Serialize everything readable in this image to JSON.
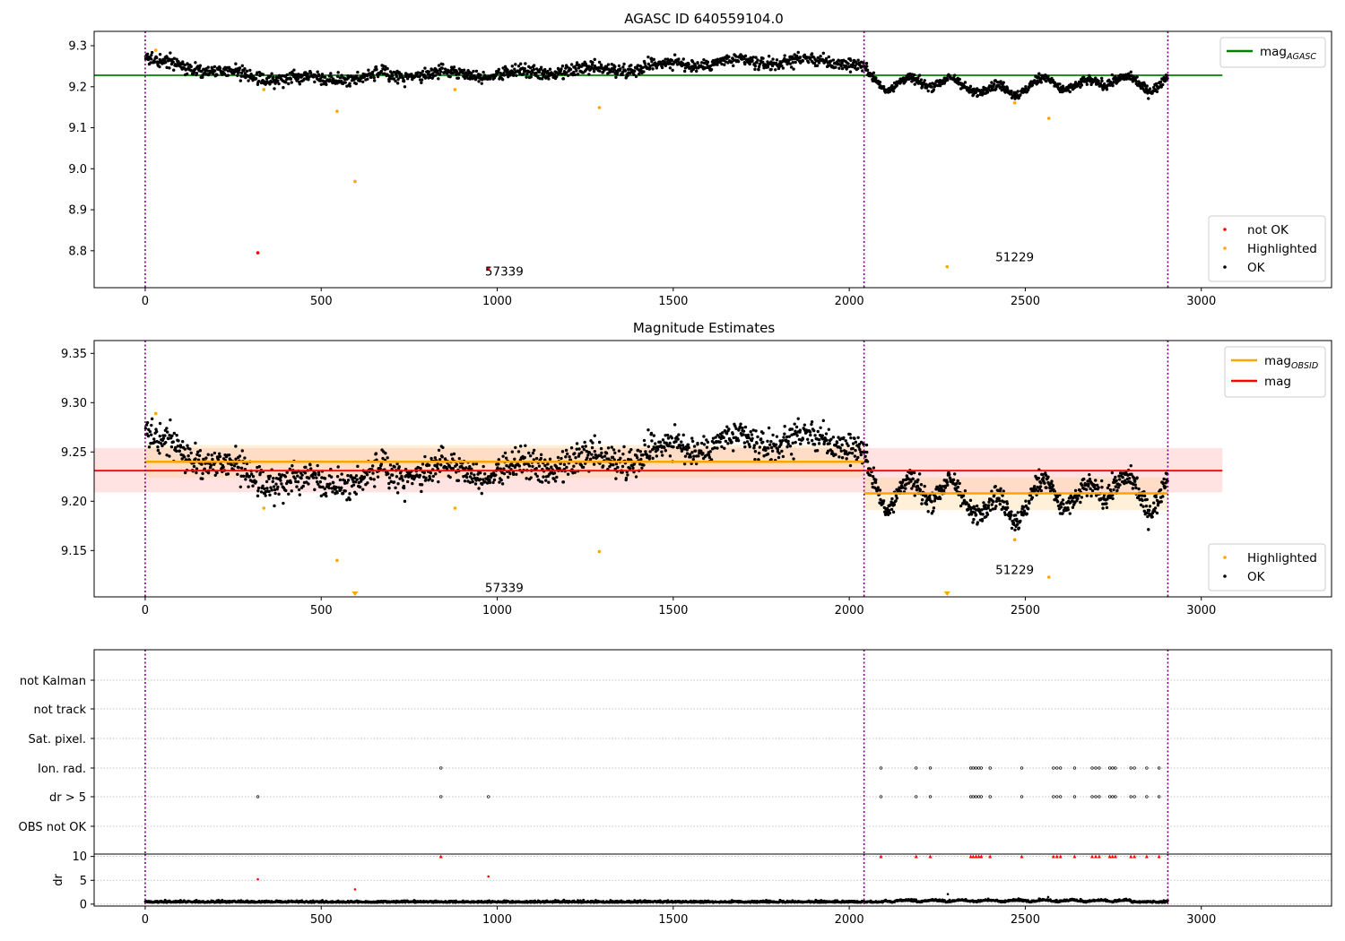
{
  "chart_data": [
    {
      "type": "scatter",
      "title": "AGASC ID 640559104.0",
      "xlim": [
        -145,
        3370
      ],
      "ylim": [
        8.71,
        9.335
      ],
      "x_ticks": [
        0,
        500,
        1000,
        1500,
        2000,
        2500,
        3000
      ],
      "y_ticks": [
        8.8,
        8.9,
        9.0,
        9.1,
        9.2,
        9.3
      ],
      "y_tick_labels": [
        "8.8",
        "8.9",
        "9.0",
        "9.1",
        "9.2",
        "9.3"
      ],
      "vlines": [
        0,
        2042,
        2905
      ],
      "hlines": [
        {
          "y": 9.228,
          "x_end": 3060,
          "color": "#008000"
        }
      ],
      "legend_lines": [
        {
          "label": "mag",
          "sub": "AGASC",
          "color": "#008000"
        }
      ],
      "legend_markers": [
        {
          "label": "not OK",
          "color": "#ff0000"
        },
        {
          "label": "Highlighted",
          "color": "#ffa500"
        },
        {
          "label": "OK",
          "color": "#000000"
        }
      ],
      "annotations": [
        {
          "text": "57339",
          "x": 1020,
          "y": 8.74
        },
        {
          "text": "51229",
          "x": 2470,
          "y": 8.775
        }
      ],
      "series": [
        {
          "name": "OK",
          "color": "#000000",
          "mode": "noise",
          "segments": [
            {
              "x0": 0,
              "x1": 2042,
              "n": 1300,
              "trend": [
                [
                  0,
                  9.265
                ],
                [
                  150,
                  9.245
                ],
                [
                  330,
                  9.222
                ],
                [
                  600,
                  9.222
                ],
                [
                  800,
                  9.232
                ],
                [
                  1100,
                  9.232
                ],
                [
                  1300,
                  9.242
                ],
                [
                  1500,
                  9.255
                ],
                [
                  1800,
                  9.262
                ],
                [
                  2000,
                  9.262
                ],
                [
                  2042,
                  9.25
                ]
              ],
              "amp": 0.011,
              "wave": 0.007,
              "freq": 0.031
            },
            {
              "x0": 2042,
              "x1": 2905,
              "n": 650,
              "trend": [
                [
                  2042,
                  9.235
                ],
                [
                  2100,
                  9.205
                ],
                [
                  2250,
                  9.215
                ],
                [
                  2350,
                  9.198
                ],
                [
                  2470,
                  9.19
                ],
                [
                  2560,
                  9.215
                ],
                [
                  2650,
                  9.198
                ],
                [
                  2750,
                  9.222
                ],
                [
                  2850,
                  9.2
                ],
                [
                  2905,
                  9.218
                ]
              ],
              "amp": 0.008,
              "wave": 0.012,
              "freq": 0.05
            }
          ]
        },
        {
          "name": "Highlighted",
          "color": "#ffa500",
          "points": [
            [
              30,
              9.289
            ],
            [
              337,
              9.193
            ],
            [
              545,
              9.14
            ],
            [
              596,
              8.969
            ],
            [
              880,
              9.193
            ],
            [
              1290,
              9.149
            ],
            [
              2278,
              8.761
            ],
            [
              2470,
              9.161
            ],
            [
              2567,
              9.123
            ]
          ]
        },
        {
          "name": "not OK",
          "color": "#ff0000",
          "points": [
            [
              320,
              8.795
            ],
            [
              975,
              8.757
            ]
          ]
        }
      ]
    },
    {
      "type": "scatter",
      "title": "Magnitude Estimates",
      "xlim": [
        -145,
        3370
      ],
      "ylim": [
        9.103,
        9.363
      ],
      "x_ticks": [
        0,
        500,
        1000,
        1500,
        2000,
        2500,
        3000
      ],
      "y_ticks": [
        9.15,
        9.2,
        9.25,
        9.3,
        9.35
      ],
      "y_tick_labels": [
        "9.15",
        "9.20",
        "9.25",
        "9.30",
        "9.35"
      ],
      "vlines": [
        0,
        2042,
        2905
      ],
      "bands": [
        {
          "x0": -145,
          "x1": 3060,
          "y0": 9.209,
          "y1": 9.254,
          "color": "#ff9a9a",
          "opacity": 0.28
        },
        {
          "x0": 0,
          "x1": 2042,
          "y0": 9.224,
          "y1": 9.257,
          "color": "#ffc87a",
          "opacity": 0.28
        },
        {
          "x0": 2042,
          "x1": 2905,
          "y0": 9.191,
          "y1": 9.224,
          "color": "#ffc87a",
          "opacity": 0.28
        }
      ],
      "segments_lines": [
        {
          "x0": 0,
          "x1": 2042,
          "y": 9.24,
          "color": "#ffa500",
          "width": 2.5
        },
        {
          "x0": 2042,
          "x1": 2905,
          "y": 9.208,
          "color": "#ffa500",
          "width": 2.5
        },
        {
          "x0": -145,
          "x1": 3060,
          "y": 9.231,
          "color": "#ff0000",
          "width": 1.8
        }
      ],
      "legend_lines": [
        {
          "label": "mag",
          "sub": "OBSID",
          "color": "#ffa500"
        },
        {
          "label": "mag",
          "sub": "",
          "color": "#ff0000"
        }
      ],
      "legend_markers": [
        {
          "label": "Highlighted",
          "color": "#ffa500"
        },
        {
          "label": "OK",
          "color": "#000000"
        }
      ],
      "annotations": [
        {
          "text": "57339",
          "x": 1020,
          "y": 9.108
        },
        {
          "text": "51229",
          "x": 2470,
          "y": 9.126
        }
      ],
      "series": [
        {
          "name": "OK",
          "color": "#000000",
          "mode": "noise",
          "segments": [
            {
              "x0": 0,
              "x1": 2042,
              "n": 1300,
              "trend": [
                [
                  0,
                  9.265
                ],
                [
                  150,
                  9.245
                ],
                [
                  330,
                  9.222
                ],
                [
                  600,
                  9.222
                ],
                [
                  800,
                  9.232
                ],
                [
                  1100,
                  9.232
                ],
                [
                  1300,
                  9.242
                ],
                [
                  1500,
                  9.255
                ],
                [
                  1800,
                  9.262
                ],
                [
                  2000,
                  9.262
                ],
                [
                  2042,
                  9.25
                ]
              ],
              "amp": 0.011,
              "wave": 0.007,
              "freq": 0.031
            },
            {
              "x0": 2042,
              "x1": 2905,
              "n": 650,
              "trend": [
                [
                  2042,
                  9.235
                ],
                [
                  2100,
                  9.205
                ],
                [
                  2250,
                  9.215
                ],
                [
                  2350,
                  9.198
                ],
                [
                  2470,
                  9.19
                ],
                [
                  2560,
                  9.215
                ],
                [
                  2650,
                  9.198
                ],
                [
                  2750,
                  9.222
                ],
                [
                  2850,
                  9.2
                ],
                [
                  2905,
                  9.218
                ]
              ],
              "amp": 0.008,
              "wave": 0.012,
              "freq": 0.05
            }
          ]
        },
        {
          "name": "Highlighted",
          "color": "#ffa500",
          "points": [
            [
              30,
              9.289
            ],
            [
              337,
              9.193
            ],
            [
              545,
              9.14
            ],
            [
              880,
              9.193
            ],
            [
              1290,
              9.149
            ],
            [
              2470,
              9.161
            ],
            [
              2567,
              9.123
            ]
          ]
        }
      ],
      "offscale_markers": [
        [
          596,
          9.105
        ],
        [
          2278,
          9.105
        ]
      ]
    },
    {
      "type": "scatter",
      "xlim": [
        -145,
        3370
      ],
      "vlines": [
        0,
        2042,
        2905
      ],
      "flag_categories": [
        "not Kalman",
        "not track",
        "Sat. pixel.",
        "Ion. rad.",
        "dr > 5",
        "OBS not OK"
      ],
      "flags": {
        "Ion. rad.": [
          840,
          2090,
          2190,
          2230,
          2345,
          2352,
          2360,
          2368,
          2375,
          2400,
          2490,
          2580,
          2590,
          2600,
          2640,
          2690,
          2700,
          2710,
          2740,
          2748,
          2756,
          2800,
          2810,
          2845,
          2880
        ],
        "dr > 5": [
          320,
          840,
          975,
          2090,
          2190,
          2230,
          2345,
          2352,
          2360,
          2368,
          2375,
          2400,
          2490,
          2580,
          2590,
          2600,
          2640,
          2690,
          2700,
          2710,
          2740,
          2748,
          2756,
          2800,
          2810,
          2845,
          2880
        ]
      }
    },
    {
      "type": "scatter",
      "ylabel": "dr",
      "xlim": [
        -145,
        3370
      ],
      "ylim": [
        -0.4,
        10.5
      ],
      "x_ticks": [
        0,
        500,
        1000,
        1500,
        2000,
        2500,
        3000
      ],
      "y_ticks": [
        0,
        5,
        10
      ],
      "y_tick_labels": [
        "0",
        "5",
        "10"
      ],
      "vlines": [
        0,
        2042,
        2905
      ],
      "hgrid": [
        0,
        5,
        10
      ],
      "series": [
        {
          "name": "dr",
          "color": "#000000",
          "mode": "dr",
          "n": 1950,
          "x0": 0,
          "x1": 2905,
          "base": 0.35
        },
        {
          "name": "dr high",
          "color": "#ff0000",
          "points": [
            [
              320,
              5.2
            ],
            [
              596,
              3.1
            ],
            [
              975,
              5.8
            ]
          ]
        }
      ],
      "dr_capped_x": [
        840,
        2090,
        2190,
        2230,
        2345,
        2352,
        2360,
        2368,
        2375,
        2400,
        2490,
        2580,
        2590,
        2600,
        2640,
        2690,
        2700,
        2710,
        2740,
        2748,
        2756,
        2800,
        2810,
        2845,
        2880
      ],
      "dr_capped_value": 10,
      "extra_black_points": [
        [
          2280,
          2.1
        ],
        [
          2565,
          1.5
        ]
      ]
    }
  ]
}
